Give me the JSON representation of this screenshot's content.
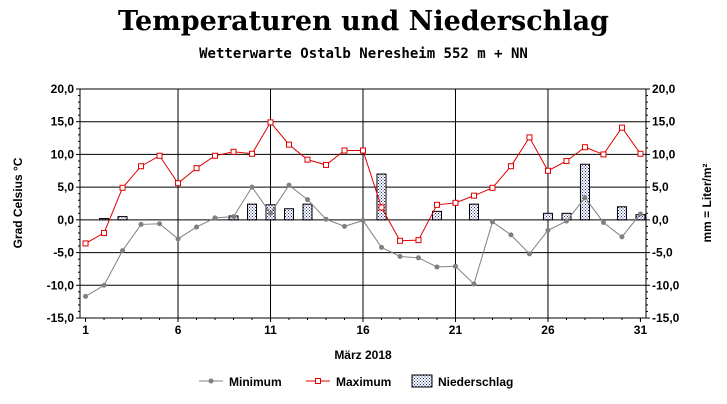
{
  "chart_data": {
    "type": "line",
    "title": "Temperaturen und  Niederschlag",
    "subtitle": "Wetterwarte Ostalb Neresheim 552 m + NN",
    "xlabel": "März 2018",
    "ylabel": "Grad Celsius °C",
    "y2label": "mm = Liter/m²",
    "ylim": [
      -15,
      20
    ],
    "y2lim": [
      -15,
      20
    ],
    "xlim": [
      1,
      31
    ],
    "yticks": [
      "20,0",
      "15,0",
      "10,0",
      "5,0",
      "0,0",
      "-5,0",
      "-10,0",
      "-15,0"
    ],
    "y2ticks": [
      "20,0",
      "15,0",
      "10,0",
      "5,0",
      "0,0",
      "-5,0",
      "-10,0",
      "-15,0"
    ],
    "xticks": [
      "1",
      "6",
      "11",
      "16",
      "21",
      "26",
      "31"
    ],
    "x": [
      1,
      2,
      3,
      4,
      5,
      6,
      7,
      8,
      9,
      10,
      11,
      12,
      13,
      14,
      15,
      16,
      17,
      18,
      19,
      20,
      21,
      22,
      23,
      24,
      25,
      26,
      27,
      28,
      29,
      30,
      31
    ],
    "series": [
      {
        "name": "Minimum",
        "type": "line",
        "color": "#808080",
        "values": [
          -11.7,
          -10.0,
          -4.7,
          -0.7,
          -0.6,
          -2.9,
          -1.1,
          0.3,
          0.5,
          5.0,
          1.0,
          5.3,
          3.1,
          0.1,
          -1.0,
          -0.1,
          -4.2,
          -5.6,
          -5.8,
          -7.2,
          -7.1,
          -9.8,
          -0.3,
          -2.3,
          -5.2,
          -1.6,
          -0.2,
          3.4,
          -0.4,
          -2.6,
          0.9
        ]
      },
      {
        "name": "Maximum",
        "type": "line",
        "color": "#e00000",
        "values": [
          -3.6,
          -2.0,
          4.9,
          8.2,
          9.8,
          5.6,
          7.9,
          9.8,
          10.4,
          10.1,
          14.9,
          11.5,
          9.2,
          8.4,
          10.6,
          10.6,
          1.9,
          -3.2,
          -3.1,
          2.3,
          2.6,
          3.7,
          4.9,
          8.2,
          12.6,
          7.5,
          9.0,
          11.1,
          10.0,
          14.1,
          10.1
        ]
      },
      {
        "name": "Niederschlag",
        "type": "bar",
        "color": "#1c2a80",
        "values": [
          0,
          0.2,
          0.5,
          0,
          0,
          0,
          0,
          0,
          0.6,
          2.4,
          2.3,
          1.7,
          2.4,
          0,
          0,
          0,
          7.0,
          0,
          0,
          1.3,
          0,
          2.4,
          0,
          0,
          0,
          1.0,
          1.0,
          8.5,
          0,
          2.0,
          0.8
        ]
      }
    ],
    "legend": [
      "Minimum",
      "Maximum",
      "Niederschlag"
    ],
    "legend_position": "bottom",
    "grid": true
  }
}
